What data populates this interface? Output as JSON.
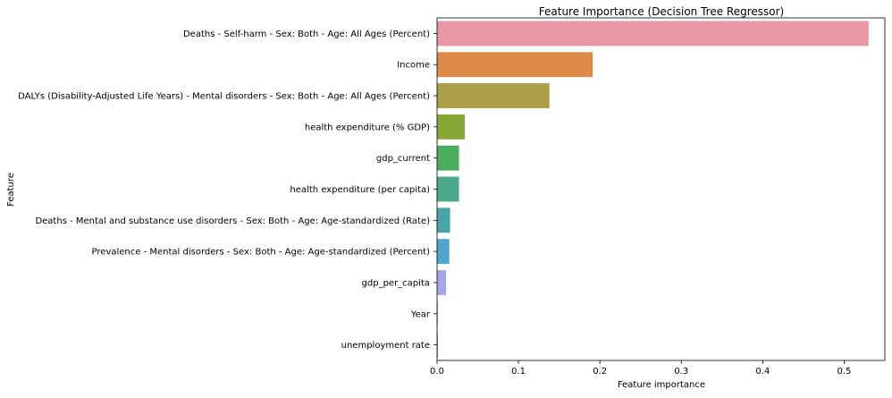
{
  "chart_data": {
    "type": "bar",
    "orientation": "horizontal",
    "title": "Feature Importance (Decision Tree Regressor)",
    "xlabel": "Feature importance",
    "ylabel": "Feature",
    "xlim": [
      0,
      0.55
    ],
    "xticks": [
      0,
      0.1,
      0.2,
      0.3,
      0.4,
      0.5
    ],
    "xtick_labels": [
      "0.0",
      "0.1",
      "0.2",
      "0.3",
      "0.4",
      "0.5"
    ],
    "grid": false,
    "legend": "none",
    "categories": [
      "Deaths - Self-harm - Sex: Both - Age: All Ages (Percent)",
      "Income",
      "DALYs (Disability-Adjusted Life Years) - Mental disorders - Sex: Both - Age: All Ages (Percent)",
      "health expenditure (% GDP)",
      "gdp_current",
      "health expenditure (per capita)",
      "Deaths - Mental and substance use disorders - Sex: Both - Age: Age-standardized (Rate)",
      "Prevalence - Mental disorders - Sex: Both - Age: Age-standardized (Percent)",
      "gdp_per_capita",
      "Year",
      "unemployment rate"
    ],
    "values": [
      0.53,
      0.191,
      0.138,
      0.034,
      0.027,
      0.027,
      0.016,
      0.015,
      0.011,
      0.001,
      0.001
    ],
    "colors": [
      "#ea96a3",
      "#dd8a48",
      "#ad9d46",
      "#86a535",
      "#49ad5d",
      "#4aa88c",
      "#48a5a5",
      "#4fa6cc",
      "#a3a8e8",
      "#d388e4",
      "#d96fc8"
    ]
  }
}
